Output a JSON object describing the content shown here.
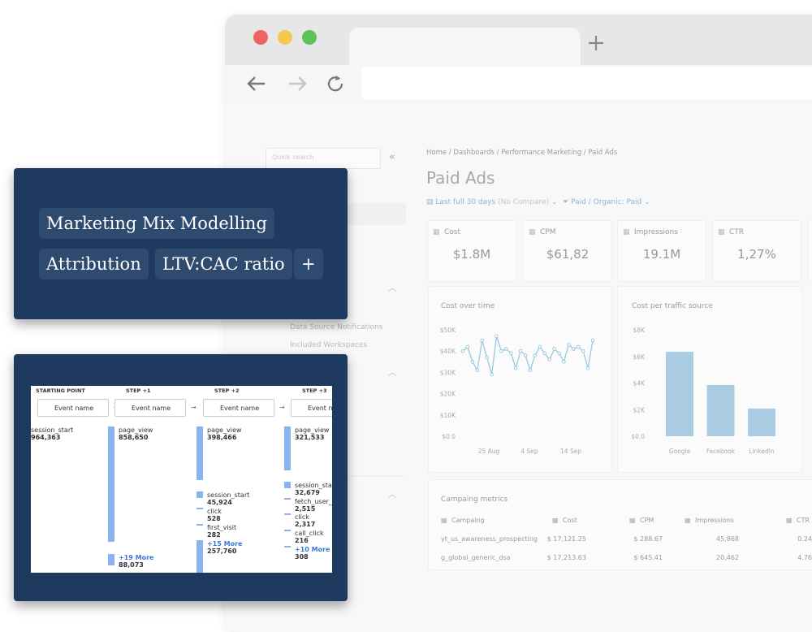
{
  "tags": [
    "Marketing Mix Modelling",
    "Attribution",
    "LTV:CAC ratio",
    "+"
  ],
  "sidebar": {
    "search": "Quick search",
    "items": [
      "Data Source Notifications",
      "Included Workspaces"
    ]
  },
  "breadcrumb": "Home / Dashboards / Performance Marketing / Paid Ads",
  "title": "Paid Ads",
  "filters": {
    "date": "Last full 30 days",
    "compare": "(No Compare)",
    "channel": "Paid / Organic: Paid"
  },
  "kpis": [
    {
      "label": "Cost",
      "value": "$1.8M"
    },
    {
      "label": "CPM",
      "value": "$61,82"
    },
    {
      "label": "Impressions",
      "value": "19.1M"
    },
    {
      "label": "CTR",
      "value": "1,27%"
    }
  ],
  "cost_over_time": {
    "title": "Cost over time",
    "values": [
      40000,
      42000,
      35000,
      31000,
      45000,
      37000,
      29000,
      47000,
      40000,
      41000,
      39000,
      32000,
      40000,
      38000,
      31000,
      38000,
      42000,
      39000,
      36000,
      41000,
      39000,
      35000,
      43000,
      41000,
      42000,
      40000,
      32000,
      45000
    ],
    "ylim": [
      0,
      50000
    ],
    "yticks": [
      {
        "value": 0,
        "label": "$0.0"
      },
      {
        "value": 10000,
        "label": "$10K"
      },
      {
        "value": 20000,
        "label": "$20K"
      },
      {
        "value": 30000,
        "label": "$30K"
      },
      {
        "value": 40000,
        "label": "$40K"
      },
      {
        "value": 50000,
        "label": "$50K"
      }
    ],
    "xlabels": [
      "25 Aug",
      "4 Sep",
      "14 Sep"
    ]
  },
  "cost_per_source": {
    "title": "Cost per traffic source",
    "categories": [
      "Google",
      "Facebook",
      "LinkedIn"
    ],
    "values": [
      6350,
      3850,
      2080
    ],
    "color": "#a9cce3",
    "ylim": [
      0,
      8000
    ],
    "yticks": [
      {
        "value": 0,
        "label": "$0.0"
      },
      {
        "value": 2000,
        "label": "$2K"
      },
      {
        "value": 4000,
        "label": "$4K"
      },
      {
        "value": 6000,
        "label": "$6K"
      },
      {
        "value": 8000,
        "label": "$8K"
      }
    ]
  },
  "table": {
    "title": "Campaing metrics",
    "headers": [
      "Campaing",
      "Cost",
      "CPM",
      "Impressions",
      "CTR"
    ],
    "rows": [
      [
        "yt_us_awareness_prospecting",
        "$ 17,121.25",
        "$ 288.67",
        "45,868",
        "0.24"
      ],
      [
        "g_global_generic_dsa",
        "$ 17,213.63",
        "$ 645.41",
        "20,462",
        "4.76"
      ]
    ]
  },
  "funnel": {
    "steps": [
      "STARTING POINT",
      "STEP +1",
      "STEP +2",
      "STEP +3"
    ],
    "selector": "Event name",
    "columns": [
      [
        {
          "label": "session_start",
          "value": "964,363"
        }
      ],
      [
        {
          "label": "page_view",
          "value": "858,650"
        },
        {
          "label": "+19 More",
          "value": "88,073"
        }
      ],
      [
        {
          "label": "page_view",
          "value": "398,466"
        },
        {
          "label": "session_start",
          "value": "45,924"
        },
        {
          "label": "click",
          "value": "528"
        },
        {
          "label": "first_visit",
          "value": "282"
        },
        {
          "label": "+15 More",
          "value": "257,760"
        }
      ],
      [
        {
          "label": "page_view",
          "value": "321,533"
        },
        {
          "label": "session_start",
          "value": "32,679"
        },
        {
          "label": "fetch_user_data",
          "value": "2,515"
        },
        {
          "label": "click",
          "value": "2,317"
        },
        {
          "label": "call_click",
          "value": "216"
        },
        {
          "label": "+10 More",
          "value": "308"
        }
      ]
    ]
  }
}
